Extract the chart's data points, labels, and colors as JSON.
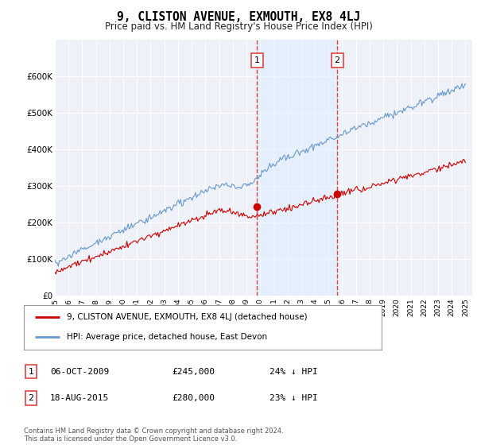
{
  "title": "9, CLISTON AVENUE, EXMOUTH, EX8 4LJ",
  "subtitle": "Price paid vs. HM Land Registry's House Price Index (HPI)",
  "red_label": "9, CLISTON AVENUE, EXMOUTH, EX8 4LJ (detached house)",
  "blue_label": "HPI: Average price, detached house, East Devon",
  "annotation1_num": "1",
  "annotation1_date": "06-OCT-2009",
  "annotation1_price": "£245,000",
  "annotation1_hpi": "24% ↓ HPI",
  "annotation2_num": "2",
  "annotation2_date": "18-AUG-2015",
  "annotation2_price": "£280,000",
  "annotation2_hpi": "23% ↓ HPI",
  "footer": "Contains HM Land Registry data © Crown copyright and database right 2024.\nThis data is licensed under the Open Government Licence v3.0.",
  "red_color": "#cc0000",
  "blue_color": "#6699cc",
  "vline_color": "#dd4444",
  "shade_color": "#ddeeff",
  "bg_color": "#ffffff",
  "plot_bg": "#eef2f8",
  "grid_color": "#ffffff",
  "ylim": [
    0,
    700000
  ],
  "yticks": [
    0,
    100000,
    200000,
    300000,
    400000,
    500000,
    600000
  ],
  "ytick_labels": [
    "£0",
    "£100K",
    "£200K",
    "£300K",
    "£400K",
    "£500K",
    "£600K"
  ],
  "purchase1_year": 2009.77,
  "purchase1_price": 245000,
  "purchase2_year": 2015.63,
  "purchase2_price": 280000,
  "xlim_start": 1995,
  "xlim_end": 2025.5
}
